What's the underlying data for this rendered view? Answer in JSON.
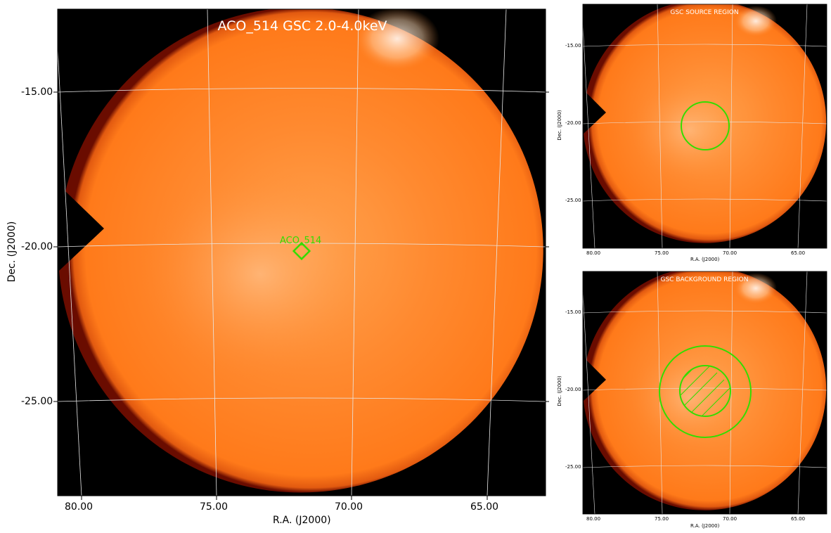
{
  "main": {
    "title": "ACO_514 GSC 2.0-4.0keV",
    "xlabel": "R.A. (J2000)",
    "ylabel": "Dec. (J2000)",
    "x_ticks": [
      "80.00",
      "75.00",
      "70.00",
      "65.00"
    ],
    "y_ticks": [
      "-15.00",
      "-20.00",
      "-25.00"
    ],
    "source_label": "ACO_514"
  },
  "source_panel": {
    "title": "GSC SOURCE REGION",
    "xlabel": "R.A. (J2000)",
    "ylabel": "Dec. (J2000)",
    "x_ticks": [
      "80.00",
      "75.00",
      "70.00",
      "65.00"
    ],
    "y_ticks": [
      "-15.00",
      "-20.00",
      "-25.00"
    ]
  },
  "background_panel": {
    "title": "GSC BACKGROUND REGION",
    "xlabel": "R.A. (J2000)",
    "ylabel": "Dec. (J2000)",
    "x_ticks": [
      "80.00",
      "75.00",
      "70.00",
      "65.00"
    ],
    "y_ticks": [
      "-15.00",
      "-20.00",
      "-25.00"
    ]
  },
  "colors": {
    "disk": "#ff7a1a",
    "disk_glow": "#ffb066",
    "edge": "#8a1200",
    "background": "#000000",
    "region": "#33dd00",
    "grid": "#dddddd"
  }
}
